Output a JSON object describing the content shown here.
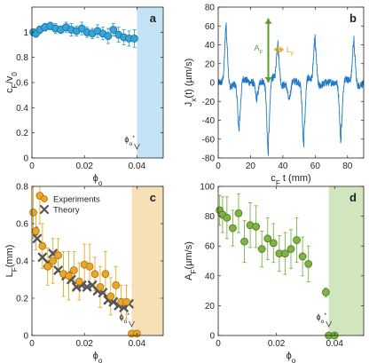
{
  "chart_data": [
    {
      "id": "a",
      "type": "scatter",
      "panel_label": "a",
      "xlabel_main": "ϕ",
      "xlabel_sub": "o",
      "ylabel_main": "c",
      "ylabel_sub": "F",
      "ylabel_rest": "/v",
      "ylabel_sub2": "0",
      "xlim": [
        0,
        0.05
      ],
      "ylim": [
        0,
        1.2
      ],
      "xticks": [
        0,
        0.02,
        0.04
      ],
      "xticklabels": [
        "0",
        "0.02",
        "0.04"
      ],
      "yticks": [
        0,
        0.2,
        0.4,
        0.6,
        0.8,
        1.0
      ],
      "yticklabels": [
        "0",
        "0.2",
        "0.4",
        "0.6",
        "0.8",
        "1"
      ],
      "shade": {
        "x0": 0.04,
        "x1": 0.05,
        "color": "#c4e4f5"
      },
      "phi_star": {
        "x": 0.04,
        "label_main": "ϕ",
        "label_sub": "o",
        "label_sup": "*"
      },
      "series": [
        {
          "color": "#35a4d8",
          "edge": "#1a6f9a",
          "points": [
            {
              "x": 0.0005,
              "y": 1.0,
              "err": 0.02
            },
            {
              "x": 0.0015,
              "y": 0.99,
              "err": 0.03
            },
            {
              "x": 0.003,
              "y": 1.02,
              "err": 0.03
            },
            {
              "x": 0.005,
              "y": 1.04,
              "err": 0.03
            },
            {
              "x": 0.007,
              "y": 1.05,
              "err": 0.03
            },
            {
              "x": 0.009,
              "y": 1.03,
              "err": 0.04
            },
            {
              "x": 0.011,
              "y": 1.02,
              "err": 0.03
            },
            {
              "x": 0.013,
              "y": 1.04,
              "err": 0.04
            },
            {
              "x": 0.015,
              "y": 1.02,
              "err": 0.05
            },
            {
              "x": 0.017,
              "y": 1.01,
              "err": 0.04
            },
            {
              "x": 0.019,
              "y": 1.03,
              "err": 0.05
            },
            {
              "x": 0.021,
              "y": 1.0,
              "err": 0.04
            },
            {
              "x": 0.023,
              "y": 0.99,
              "err": 0.04
            },
            {
              "x": 0.025,
              "y": 1.01,
              "err": 0.05
            },
            {
              "x": 0.027,
              "y": 0.99,
              "err": 0.05
            },
            {
              "x": 0.029,
              "y": 0.97,
              "err": 0.06
            },
            {
              "x": 0.031,
              "y": 1.02,
              "err": 0.05
            },
            {
              "x": 0.033,
              "y": 0.98,
              "err": 0.06
            },
            {
              "x": 0.035,
              "y": 0.96,
              "err": 0.06
            },
            {
              "x": 0.037,
              "y": 0.95,
              "err": 0.06
            },
            {
              "x": 0.039,
              "y": 0.95,
              "err": 0.07
            }
          ]
        }
      ],
      "grid": false
    },
    {
      "id": "b",
      "type": "line",
      "panel_label": "b",
      "xlabel_main": "c",
      "xlabel_sub": "F",
      "xlabel_rest": "t (mm)",
      "ylabel_main": "J",
      "ylabel_sub": "x",
      "ylabel_rest": "(t) (µm/s)",
      "xlim": [
        0,
        90
      ],
      "ylim": [
        -80,
        80
      ],
      "xticks": [
        0,
        20,
        40,
        60,
        80
      ],
      "xticklabels": [
        "0",
        "20",
        "40",
        "60",
        "80"
      ],
      "yticks": [
        -80,
        -60,
        -40,
        -20,
        0,
        20,
        40,
        60,
        80
      ],
      "yticklabels": [
        "-80",
        "-60",
        "-40",
        "-20",
        "0",
        "20",
        "40",
        "60",
        "80"
      ],
      "line_color": "#1f78c8",
      "spikes": [
        {
          "x": 5,
          "amp": 62
        },
        {
          "x": 13,
          "amp": -52
        },
        {
          "x": 24,
          "amp": -18
        },
        {
          "x": 31,
          "amp": -74
        },
        {
          "x": 37,
          "amp": 42
        },
        {
          "x": 44,
          "amp": -20
        },
        {
          "x": 53,
          "amp": -66
        },
        {
          "x": 60,
          "amp": 48
        },
        {
          "x": 76,
          "amp": -62
        },
        {
          "x": 84,
          "amp": 46
        }
      ],
      "noise_amp": 4,
      "annotation_A": {
        "label": "A",
        "sub": "F",
        "x": 31,
        "y_from": 0,
        "y_to": 68,
        "color": "#5a9e2f"
      },
      "annotation_L": {
        "label": "L",
        "sub": "F",
        "x_from": 35,
        "x_to": 40,
        "y": 35,
        "color": "#e6a521"
      },
      "grid": false
    },
    {
      "id": "c",
      "type": "scatter",
      "panel_label": "c",
      "xlabel_main": "ϕ",
      "xlabel_sub": "o",
      "ylabel_main": "L",
      "ylabel_sub": "F",
      "ylabel_rest": "(mm)",
      "xlim": [
        0,
        0.05
      ],
      "ylim": [
        0,
        0.8
      ],
      "xticks": [
        0,
        0.02,
        0.04
      ],
      "xticklabels": [
        "0",
        "0.02",
        "0.04"
      ],
      "yticks": [
        0,
        0.2,
        0.4,
        0.6,
        0.8
      ],
      "yticklabels": [
        "0",
        "0.2",
        "0.4",
        "0.6",
        "0.8"
      ],
      "shade": {
        "x0": 0.038,
        "x1": 0.05,
        "color": "#f7e0b5"
      },
      "phi_star": {
        "x": 0.038,
        "label_main": "ϕ",
        "label_sub": "o",
        "label_sup": "*"
      },
      "legend": [
        {
          "label": "Experiments",
          "marker": "circle",
          "color": "#e8a825"
        },
        {
          "label": "Theory",
          "marker": "x",
          "color": "#555555"
        }
      ],
      "series": [
        {
          "name": "Experiments",
          "color": "#e8a825",
          "edge": "#a87010",
          "points": [
            {
              "x": 0.0005,
              "y": 0.66,
              "err": 0.14
            },
            {
              "x": 0.0015,
              "y": 0.56,
              "err": 0.1
            },
            {
              "x": 0.003,
              "y": 0.75,
              "err": 0.15
            },
            {
              "x": 0.004,
              "y": 0.48,
              "err": 0.12
            },
            {
              "x": 0.006,
              "y": 0.37,
              "err": 0.1
            },
            {
              "x": 0.008,
              "y": 0.4,
              "err": 0.12
            },
            {
              "x": 0.01,
              "y": 0.43,
              "err": 0.09
            },
            {
              "x": 0.012,
              "y": 0.33,
              "err": 0.12
            },
            {
              "x": 0.014,
              "y": 0.32,
              "err": 0.13
            },
            {
              "x": 0.016,
              "y": 0.35,
              "err": 0.1
            },
            {
              "x": 0.018,
              "y": 0.29,
              "err": 0.1
            },
            {
              "x": 0.02,
              "y": 0.38,
              "err": 0.11
            },
            {
              "x": 0.022,
              "y": 0.37,
              "err": 0.12
            },
            {
              "x": 0.024,
              "y": 0.33,
              "err": 0.09
            },
            {
              "x": 0.026,
              "y": 0.26,
              "err": 0.11
            },
            {
              "x": 0.028,
              "y": 0.33,
              "err": 0.12
            },
            {
              "x": 0.03,
              "y": 0.21,
              "err": 0.1
            },
            {
              "x": 0.032,
              "y": 0.27,
              "err": 0.1
            },
            {
              "x": 0.034,
              "y": 0.18,
              "err": 0.09
            },
            {
              "x": 0.036,
              "y": 0.18,
              "err": 0.09
            },
            {
              "x": 0.038,
              "y": 0.01,
              "err": 0
            },
            {
              "x": 0.04,
              "y": 0.01,
              "err": 0
            }
          ]
        },
        {
          "name": "Theory",
          "color": "#555555",
          "points": [
            {
              "x": 0.0005,
              "y": 0.56
            },
            {
              "x": 0.002,
              "y": 0.52
            },
            {
              "x": 0.004,
              "y": 0.42
            },
            {
              "x": 0.006,
              "y": 0.39
            },
            {
              "x": 0.008,
              "y": 0.44
            },
            {
              "x": 0.01,
              "y": 0.35
            },
            {
              "x": 0.013,
              "y": 0.32
            },
            {
              "x": 0.015,
              "y": 0.3
            },
            {
              "x": 0.017,
              "y": 0.26
            },
            {
              "x": 0.019,
              "y": 0.27
            },
            {
              "x": 0.021,
              "y": 0.26
            },
            {
              "x": 0.023,
              "y": 0.27
            },
            {
              "x": 0.025,
              "y": 0.24
            },
            {
              "x": 0.027,
              "y": 0.23
            },
            {
              "x": 0.029,
              "y": 0.19
            },
            {
              "x": 0.031,
              "y": 0.18
            },
            {
              "x": 0.033,
              "y": 0.16
            },
            {
              "x": 0.035,
              "y": 0.15
            },
            {
              "x": 0.037,
              "y": 0.17
            }
          ]
        }
      ],
      "grid": false
    },
    {
      "id": "d",
      "type": "scatter",
      "panel_label": "d",
      "xlabel_main": "ϕ",
      "xlabel_sub": "o",
      "ylabel_main": "A",
      "ylabel_sub": "F",
      "ylabel_rest": "(µm/s)",
      "xlim": [
        0,
        0.05
      ],
      "ylim": [
        0,
        100
      ],
      "xticks": [
        0,
        0.02,
        0.04
      ],
      "xticklabels": [
        "0",
        "0.02",
        "0.04"
      ],
      "yticks": [
        0,
        20,
        40,
        60,
        80,
        100
      ],
      "yticklabels": [
        "0",
        "20",
        "40",
        "60",
        "80",
        "100"
      ],
      "shade": {
        "x0": 0.038,
        "x1": 0.05,
        "color": "#d2e6bd"
      },
      "phi_star": {
        "x": 0.038,
        "label_main": "ϕ",
        "label_sub": "o",
        "label_sup": "*"
      },
      "series": [
        {
          "color": "#7cb342",
          "edge": "#4a7a1e",
          "points": [
            {
              "x": 0.0005,
              "y": 84,
              "err": 10
            },
            {
              "x": 0.0015,
              "y": 81,
              "err": 12
            },
            {
              "x": 0.003,
              "y": 79,
              "err": 14
            },
            {
              "x": 0.005,
              "y": 72,
              "err": 12
            },
            {
              "x": 0.007,
              "y": 82,
              "err": 13
            },
            {
              "x": 0.009,
              "y": 63,
              "err": 14
            },
            {
              "x": 0.011,
              "y": 74,
              "err": 15
            },
            {
              "x": 0.013,
              "y": 73,
              "err": 14
            },
            {
              "x": 0.015,
              "y": 58,
              "err": 12
            },
            {
              "x": 0.017,
              "y": 65,
              "err": 14
            },
            {
              "x": 0.019,
              "y": 62,
              "err": 13
            },
            {
              "x": 0.021,
              "y": 55,
              "err": 12
            },
            {
              "x": 0.023,
              "y": 55,
              "err": 14
            },
            {
              "x": 0.025,
              "y": 58,
              "err": 13
            },
            {
              "x": 0.027,
              "y": 64,
              "err": 15
            },
            {
              "x": 0.029,
              "y": 53,
              "err": 13
            },
            {
              "x": 0.031,
              "y": 48,
              "err": 12
            },
            {
              "x": 0.037,
              "y": 29,
              "err": 3
            },
            {
              "x": 0.038,
              "y": 0,
              "err": 0
            },
            {
              "x": 0.04,
              "y": 0,
              "err": 0
            }
          ]
        }
      ],
      "grid": false
    }
  ]
}
